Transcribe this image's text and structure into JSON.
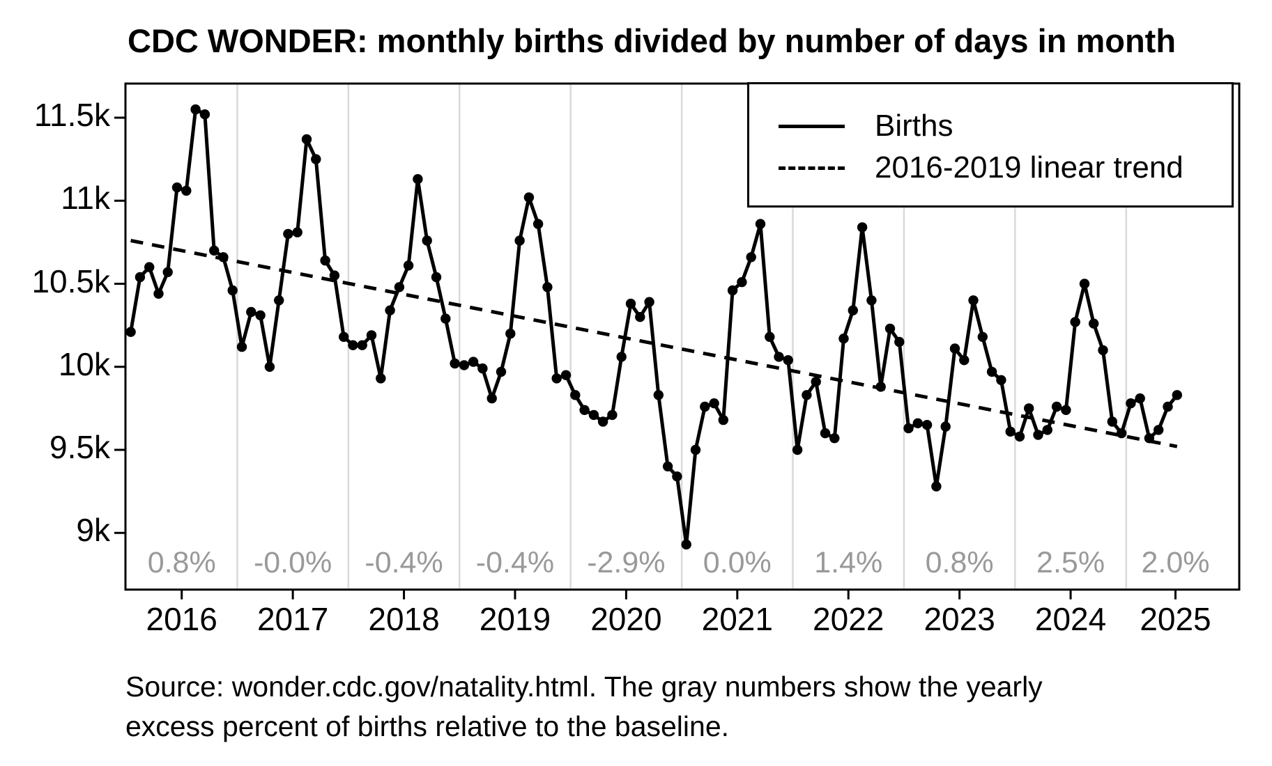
{
  "title": "CDC WONDER: monthly births divided by number of days in month",
  "source_note_line1": "Source: wonder.cdc.gov/natality.html. The gray numbers show the yearly",
  "source_note_line2": "excess percent of births relative to the baseline.",
  "legend": {
    "births_label": "Births",
    "trend_label": "2016-2019 linear trend"
  },
  "colors": {
    "line": "#000000",
    "grid": "#d9d9d9",
    "axis": "#000000",
    "percent_text": "#999999",
    "background": "#ffffff"
  },
  "chart_data": {
    "type": "line",
    "title": "CDC WONDER: monthly births divided by number of days in month",
    "xlabel": "",
    "ylabel": "",
    "x_start": "2016-01",
    "x_end": "2025-06",
    "grid": "vertical-year-lines-only",
    "legend_position": "top-right",
    "y_ticks": [
      "11.5k",
      "11k",
      "10.5k",
      "10k",
      "9.5k",
      "9k"
    ],
    "y_tick_values": [
      11500,
      11000,
      10500,
      10000,
      9500,
      9000
    ],
    "ylim": [
      8655,
      11705
    ],
    "year_labels": [
      "2016",
      "2017",
      "2018",
      "2019",
      "2020",
      "2021",
      "2022",
      "2023",
      "2024",
      "2025"
    ],
    "yearly_excess_percent": [
      "0.8%",
      "-0.0%",
      "-0.4%",
      "-0.4%",
      "-2.9%",
      "0.0%",
      "1.4%",
      "0.8%",
      "2.5%",
      "2.0%"
    ],
    "series": [
      {
        "name": "Births",
        "style": "solid-line-with-points",
        "unit": "births per day",
        "monthly_births_per_day": {
          "2016": [
            10210,
            10540,
            10600,
            10440,
            10570,
            11080,
            11060,
            11550,
            11520,
            10700,
            10660,
            10460
          ],
          "2017": [
            10120,
            10330,
            10310,
            10000,
            10400,
            10800,
            10810,
            11370,
            11250,
            10640,
            10550,
            10180
          ],
          "2018": [
            10130,
            10130,
            10190,
            9930,
            10340,
            10480,
            10610,
            11130,
            10760,
            10540,
            10290,
            10020
          ],
          "2019": [
            10010,
            10030,
            9990,
            9810,
            9970,
            10200,
            10760,
            11020,
            10860,
            10480,
            9930,
            9950
          ],
          "2020": [
            9830,
            9740,
            9710,
            9670,
            9710,
            10060,
            10380,
            10300,
            10390,
            9830,
            9400,
            9340
          ],
          "2021": [
            8930,
            9500,
            9760,
            9780,
            9680,
            10460,
            10510,
            10660,
            10860,
            10180,
            10060,
            10040
          ],
          "2022": [
            9500,
            9830,
            9910,
            9600,
            9570,
            10170,
            10340,
            10840,
            10400,
            9880,
            10230,
            10150
          ],
          "2023": [
            9630,
            9660,
            9650,
            9280,
            9640,
            10110,
            10040,
            10400,
            10180,
            9970,
            9920,
            9610
          ],
          "2024": [
            9580,
            9750,
            9590,
            9620,
            9760,
            9740,
            10270,
            10500,
            10260,
            10100,
            9670,
            9600
          ],
          "2025": [
            9780,
            9810,
            9570,
            9620,
            9760,
            9830
          ]
        }
      },
      {
        "name": "2016-2019 linear trend",
        "style": "dashed-line",
        "trend_start_month": "2016-01",
        "trend_start_value": 10760,
        "trend_end_month": "2025-06",
        "trend_end_value": 9520
      }
    ]
  }
}
